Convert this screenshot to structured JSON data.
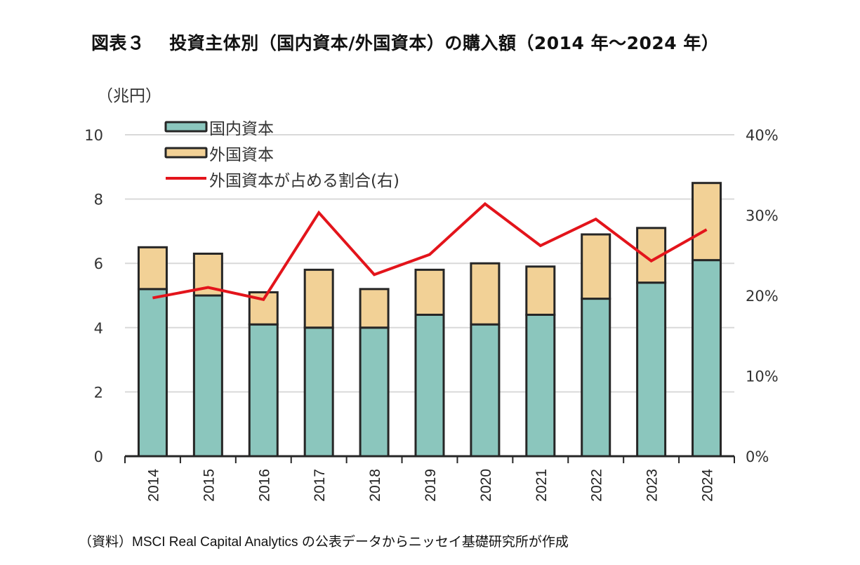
{
  "chart_data": {
    "type": "bar",
    "title": "図表３　 投資主体別（国内資本/外国資本）の購入額（2014 年～2024 年）",
    "left_axis_unit": "（兆円）",
    "categories": [
      "2014",
      "2015",
      "2016",
      "2017",
      "2018",
      "2019",
      "2020",
      "2021",
      "2022",
      "2023",
      "2024"
    ],
    "series": [
      {
        "name": "国内資本",
        "kind": "stacked-bar",
        "axis": "left",
        "values": [
          5.2,
          5.0,
          4.1,
          4.0,
          4.0,
          4.4,
          4.1,
          4.4,
          4.9,
          5.4,
          6.1
        ]
      },
      {
        "name": "外国資本",
        "kind": "stacked-bar",
        "axis": "left",
        "values": [
          1.3,
          1.3,
          1.0,
          1.8,
          1.2,
          1.4,
          1.9,
          1.5,
          2.0,
          1.7,
          2.4
        ]
      },
      {
        "name": "外国資本が占める割合(右)",
        "kind": "line",
        "axis": "right",
        "values": [
          19.7,
          21.0,
          19.5,
          30.3,
          22.6,
          25.1,
          31.4,
          26.2,
          29.5,
          24.3,
          28.2
        ]
      }
    ],
    "left_axis": {
      "ylim": [
        0,
        10
      ],
      "ticks": [
        0,
        2,
        4,
        6,
        8,
        10
      ],
      "tick_labels": [
        "0",
        "2",
        "4",
        "6",
        "8",
        "10"
      ]
    },
    "right_axis": {
      "ylim": [
        0,
        40
      ],
      "ticks": [
        0,
        10,
        20,
        30,
        40
      ],
      "tick_labels": [
        "0%",
        "10%",
        "20%",
        "30%",
        "40%"
      ]
    },
    "xlabel": "",
    "ylabel": "兆円",
    "grid": true,
    "legend_position": "top-left",
    "colors": {
      "domestic": "#8bc6bd",
      "foreign": "#f2d196",
      "share_line": "#e3141b",
      "bar_border": "#262626",
      "grid": "#d9d9d9"
    },
    "source": "（資料）MSCI Real Capital Analytics の公表データからニッセイ基礎研究所が作成"
  }
}
